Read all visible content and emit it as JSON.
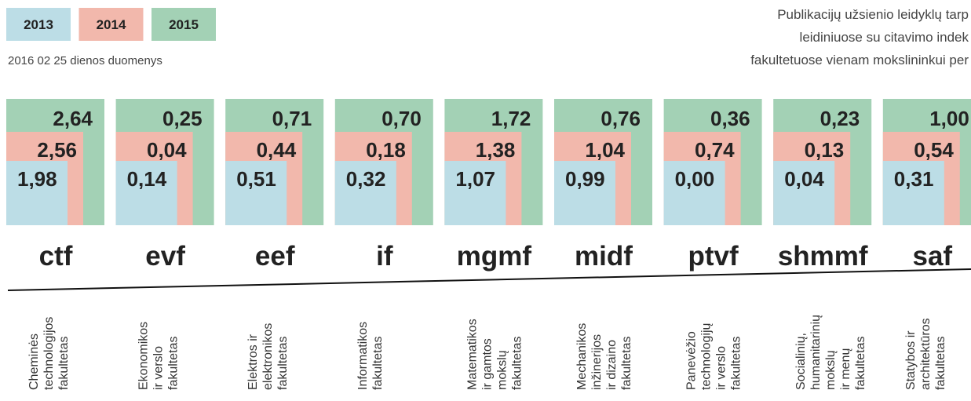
{
  "legend": [
    "2013",
    "2014",
    "2015"
  ],
  "date_note": "2016 02 25 dienos duomenys",
  "title": [
    "Publikacijų užsienio leidyklų tarp",
    "leidiniuose su citavimo indek",
    "fakultetuose vienam mokslininkui per"
  ],
  "faculties": [
    {
      "abbr": "ctf",
      "name": [
        "Cheminės",
        "technologijos",
        "fakultetas"
      ],
      "values": [
        "1,98",
        "2,56",
        "2,64"
      ]
    },
    {
      "abbr": "evf",
      "name": [
        "Ekonomikos",
        "ir verslo",
        "fakultetas"
      ],
      "values": [
        "0,14",
        "0,04",
        "0,25"
      ]
    },
    {
      "abbr": "eef",
      "name": [
        "Elektros ir",
        "elektronikos",
        "fakultetas"
      ],
      "values": [
        "0,51",
        "0,44",
        "0,71"
      ]
    },
    {
      "abbr": "if",
      "name": [
        "Informatikos",
        "fakultetas"
      ],
      "values": [
        "0,32",
        "0,18",
        "0,70"
      ]
    },
    {
      "abbr": "mgmf",
      "name": [
        "Matematikos",
        "ir gamtos",
        "mokslų",
        "fakultetas"
      ],
      "values": [
        "1,07",
        "1,38",
        "1,72"
      ]
    },
    {
      "abbr": "midf",
      "name": [
        "Mechanikos",
        "inžinerijos",
        "ir dizaino",
        "fakultetas"
      ],
      "values": [
        "0,99",
        "1,04",
        "0,76"
      ]
    },
    {
      "abbr": "ptvf",
      "name": [
        "Panevėžio",
        "technologijų",
        "ir verslo",
        "fakultetas"
      ],
      "values": [
        "0,00",
        "0,74",
        "0,36"
      ]
    },
    {
      "abbr": "shmmf",
      "name": [
        "Socialinių,",
        "humanitarinių",
        "mokslų",
        "ir menų",
        "fakultetas"
      ],
      "values": [
        "0,04",
        "0,13",
        "0,23"
      ]
    },
    {
      "abbr": "saf",
      "name": [
        "Statybos ir",
        "architektūros",
        "fakultetas"
      ],
      "values": [
        "0,31",
        "0,54",
        "1,00"
      ]
    }
  ]
}
